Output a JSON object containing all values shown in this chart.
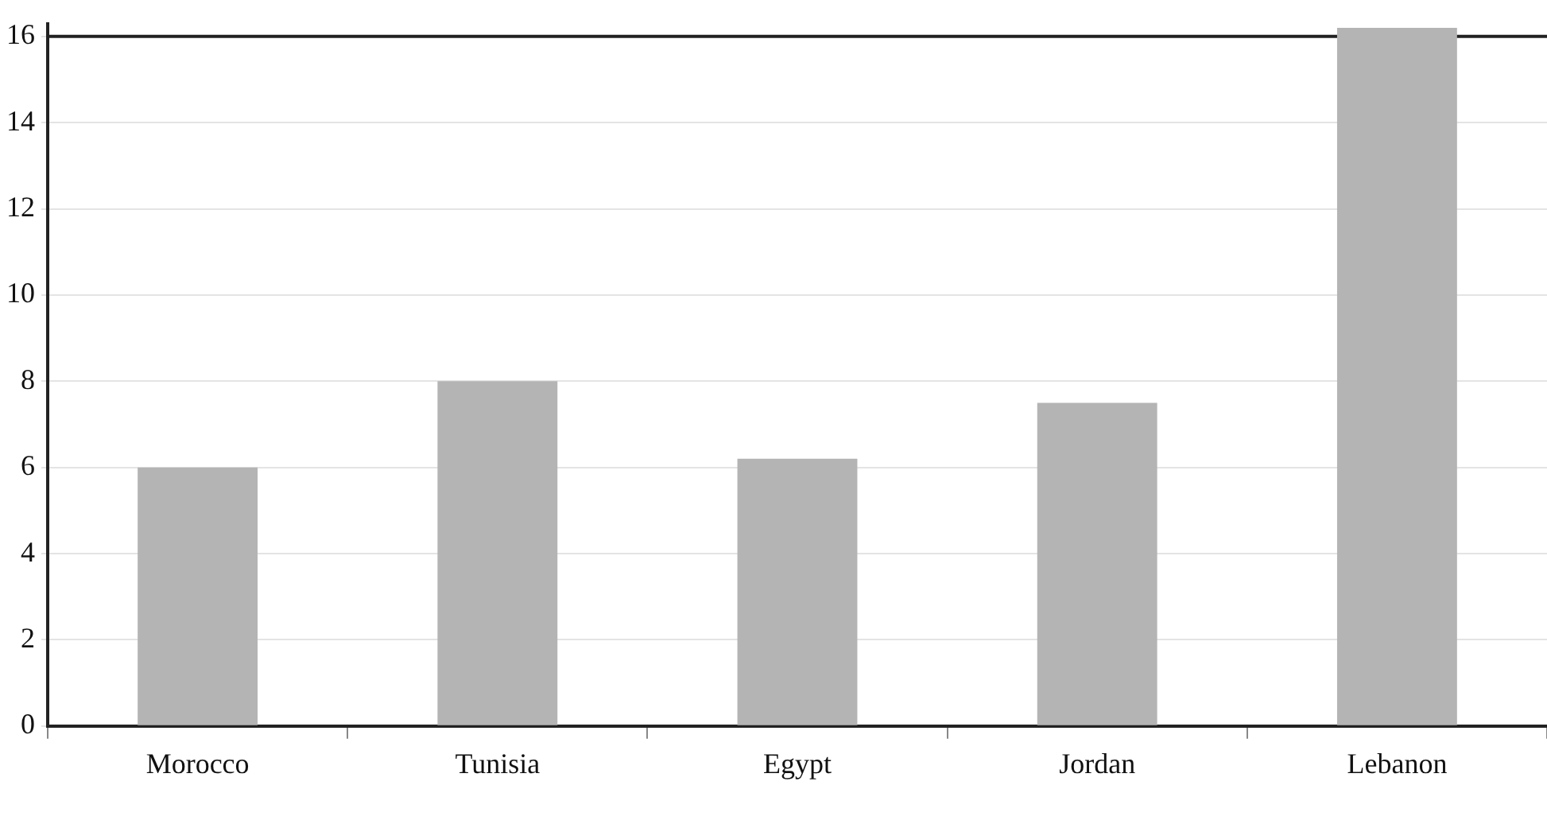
{
  "chart_data": {
    "type": "bar",
    "categories": [
      "Morocco",
      "Tunisia",
      "Egypt",
      "Jordan",
      "Lebanon"
    ],
    "values": [
      6.0,
      8.0,
      6.2,
      7.5,
      16.2
    ],
    "color": "#b4b4b4",
    "ylim": [
      0,
      16.3
    ],
    "yticks": [
      0,
      2,
      4,
      6,
      8,
      10,
      12,
      14,
      16
    ],
    "grid": "y",
    "legend": false,
    "ref_lines": [
      {
        "axis": "y",
        "value": 16,
        "color": "#222222"
      }
    ]
  }
}
